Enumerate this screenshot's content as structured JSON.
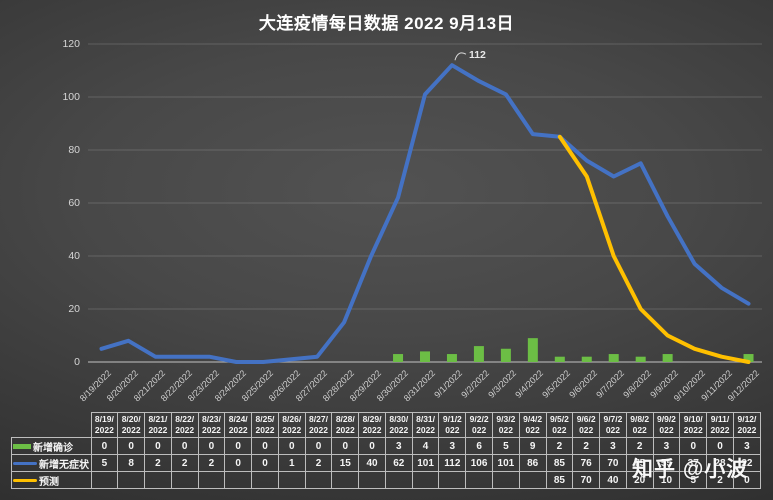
{
  "title": "大连疫情每日数据 2022 9月13日",
  "watermark": "知乎 @小波",
  "chart_data": {
    "type": "combo",
    "title": "大连疫情每日数据 2022 9月13日",
    "categories": [
      "8/19/2022",
      "8/20/2022",
      "8/21/2022",
      "8/22/2022",
      "8/23/2022",
      "8/24/2022",
      "8/25/2022",
      "8/26/2022",
      "8/27/2022",
      "8/28/2022",
      "8/29/2022",
      "8/30/2022",
      "8/31/2022",
      "9/1/2022",
      "9/2/2022",
      "9/3/2022",
      "9/4/2022",
      "9/5/2022",
      "9/6/2022",
      "9/7/2022",
      "9/8/2022",
      "9/9/2022",
      "9/10/2022",
      "9/11/2022",
      "9/12/2022"
    ],
    "ylim": [
      0,
      120
    ],
    "yticks": [
      0,
      20,
      40,
      60,
      80,
      100,
      120
    ],
    "grid": true,
    "legend_position": "table-left",
    "series": [
      {
        "name": "新增确诊",
        "type": "bar",
        "color": "#6CBE45",
        "values": [
          0,
          0,
          0,
          0,
          0,
          0,
          0,
          0,
          0,
          0,
          0,
          3,
          4,
          3,
          6,
          5,
          9,
          2,
          2,
          3,
          2,
          3,
          0,
          0,
          3
        ]
      },
      {
        "name": "新增无症状",
        "type": "line",
        "color": "#4472C4",
        "values": [
          5,
          8,
          2,
          2,
          2,
          0,
          0,
          1,
          2,
          15,
          40,
          62,
          101,
          112,
          106,
          101,
          86,
          85,
          76,
          70,
          75,
          55,
          37,
          28,
          22
        ]
      },
      {
        "name": "预测",
        "type": "line",
        "color": "#FFC000",
        "values": [
          null,
          null,
          null,
          null,
          null,
          null,
          null,
          null,
          null,
          null,
          null,
          null,
          null,
          null,
          null,
          null,
          null,
          85,
          70,
          40,
          20,
          10,
          5,
          2,
          0
        ]
      }
    ],
    "annotation": {
      "text": "112",
      "series_index": 1,
      "category_index": 13
    }
  },
  "table": {
    "rows": [
      {
        "label": "新增确诊",
        "swatch": "bar",
        "color": "#6CBE45",
        "values": [
          "0",
          "0",
          "0",
          "0",
          "0",
          "0",
          "0",
          "0",
          "0",
          "0",
          "0",
          "3",
          "4",
          "3",
          "6",
          "5",
          "9",
          "2",
          "2",
          "3",
          "2",
          "3",
          "0",
          "0",
          "3"
        ]
      },
      {
        "label": "新增无症状",
        "swatch": "line",
        "color": "#4472C4",
        "values": [
          "5",
          "8",
          "2",
          "2",
          "2",
          "0",
          "0",
          "1",
          "2",
          "15",
          "40",
          "62",
          "101",
          "112",
          "106",
          "101",
          "86",
          "85",
          "76",
          "70",
          "75",
          "55",
          "37",
          "28",
          "22"
        ]
      },
      {
        "label": "预测",
        "swatch": "line",
        "color": "#FFC000",
        "values": [
          "",
          "",
          "",
          "",
          "",
          "",
          "",
          "",
          "",
          "",
          "",
          "",
          "",
          "",
          "",
          "",
          "",
          "85",
          "70",
          "40",
          "20",
          "10",
          "5",
          "2",
          "0"
        ]
      }
    ]
  }
}
